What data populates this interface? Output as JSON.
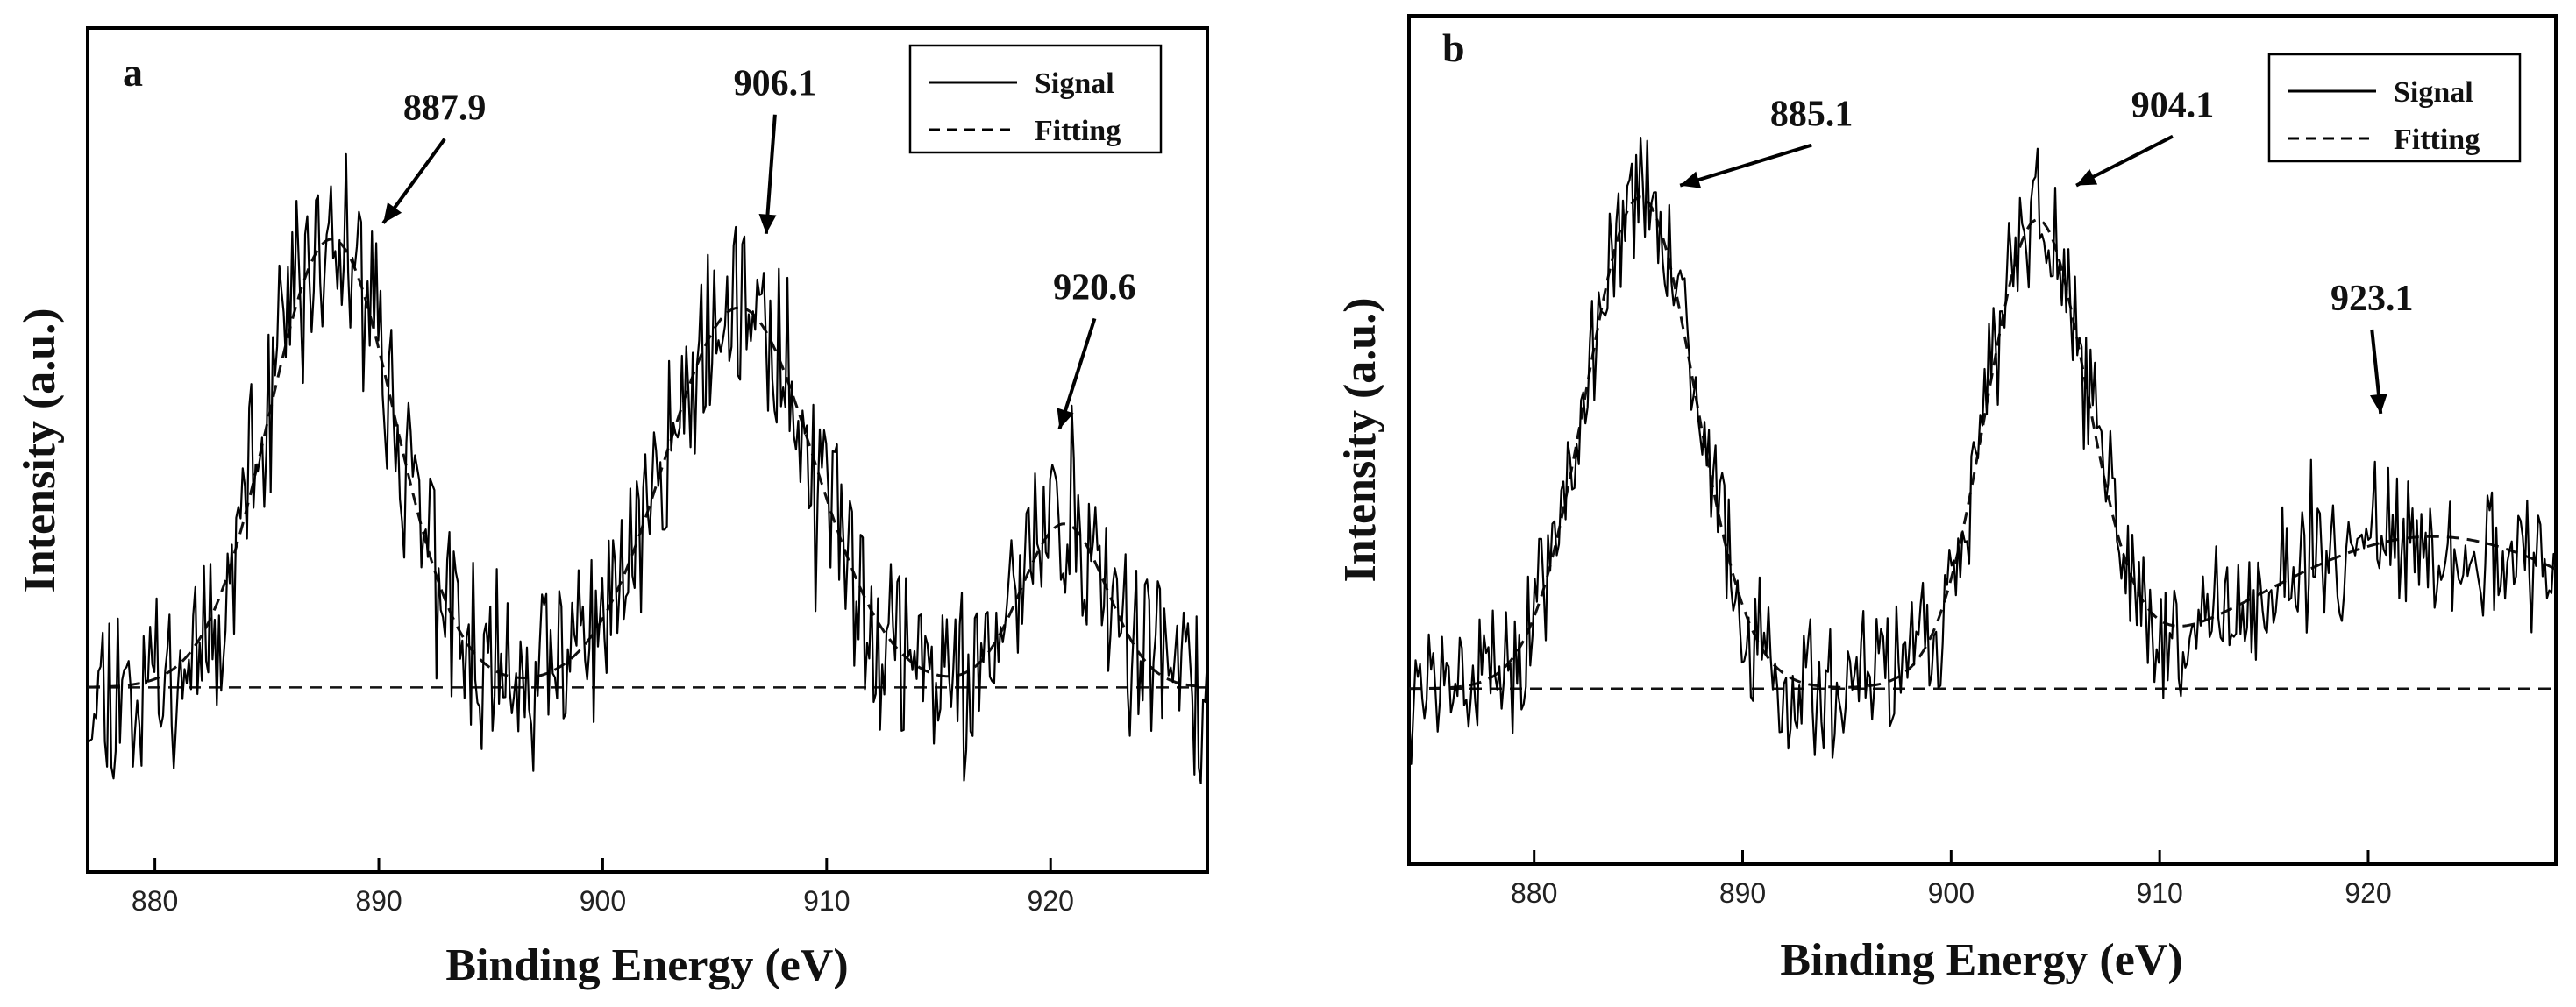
{
  "chart_data": [
    {
      "type": "line",
      "panel_label": "a",
      "xlabel": "Binding Energy (eV)",
      "ylabel": "Intensity (a.u.)",
      "xlim": [
        877,
        927
      ],
      "ylim": [
        -0.35,
        1.25
      ],
      "xticks": [
        880,
        890,
        900,
        910,
        920
      ],
      "tick_labels": [
        "880",
        "890",
        "900",
        "910",
        "920"
      ],
      "y_tick_labels_shown": false,
      "grid": false,
      "legend": {
        "position": "top-right",
        "entries": [
          {
            "label": "Signal",
            "style": "solid"
          },
          {
            "label": "Fitting",
            "style": "dashed"
          }
        ]
      },
      "series": [
        {
          "name": "Signal",
          "style": "solid-noisy",
          "noise_amplitude": 0.15,
          "baseline": 0.0,
          "peaks": [
            {
              "center": 887.9,
              "height": 0.85,
              "sigma": 2.8
            },
            {
              "center": 906.1,
              "height": 0.72,
              "sigma": 3.3
            },
            {
              "center": 920.6,
              "height": 0.31,
              "sigma": 1.9
            }
          ]
        },
        {
          "name": "Fitting",
          "style": "dashed",
          "baseline": 0.0,
          "peaks": [
            {
              "center": 887.9,
              "height": 0.85,
              "sigma": 2.8
            },
            {
              "center": 906.1,
              "height": 0.72,
              "sigma": 3.3
            },
            {
              "center": 920.6,
              "height": 0.31,
              "sigma": 1.9
            }
          ]
        }
      ],
      "annotations": [
        {
          "text": "887.9",
          "x": 890.2,
          "y": 0.88
        },
        {
          "text": "906.1",
          "x": 907.3,
          "y": 0.86
        },
        {
          "text": "920.6",
          "x": 920.4,
          "y": 0.49
        }
      ]
    },
    {
      "type": "line",
      "panel_label": "b",
      "xlabel": "Binding Energy (eV)",
      "ylabel": "Intensity (a.u.)",
      "xlim": [
        874,
        929
      ],
      "ylim": [
        -0.3,
        1.15
      ],
      "xticks": [
        880,
        890,
        900,
        910,
        920
      ],
      "tick_labels": [
        "880",
        "890",
        "900",
        "910",
        "920"
      ],
      "y_tick_labels_shown": false,
      "grid": false,
      "legend": {
        "position": "top-right",
        "entries": [
          {
            "label": "Signal",
            "style": "solid"
          },
          {
            "label": "Fitting",
            "style": "dashed"
          }
        ]
      },
      "series": [
        {
          "name": "Signal",
          "style": "solid-noisy",
          "noise_amplitude": 0.1,
          "baseline": 0.0,
          "peaks": [
            {
              "center": 885.1,
              "height": 0.84,
              "sigma": 2.6
            },
            {
              "center": 904.1,
              "height": 0.78,
              "sigma": 2.4
            },
            {
              "center": 923.1,
              "height": 0.26,
              "sigma": 8.5
            }
          ]
        },
        {
          "name": "Fitting",
          "style": "dashed",
          "baseline": 0.0,
          "peaks": [
            {
              "center": 885.1,
              "height": 0.84,
              "sigma": 2.6
            },
            {
              "center": 904.1,
              "height": 0.78,
              "sigma": 2.4
            },
            {
              "center": 923.1,
              "height": 0.26,
              "sigma": 8.5
            }
          ]
        }
      ],
      "annotations": [
        {
          "text": "885.1",
          "x": 887.0,
          "y": 0.86
        },
        {
          "text": "904.1",
          "x": 906.0,
          "y": 0.86
        },
        {
          "text": "923.1",
          "x": 920.6,
          "y": 0.47
        }
      ]
    }
  ]
}
